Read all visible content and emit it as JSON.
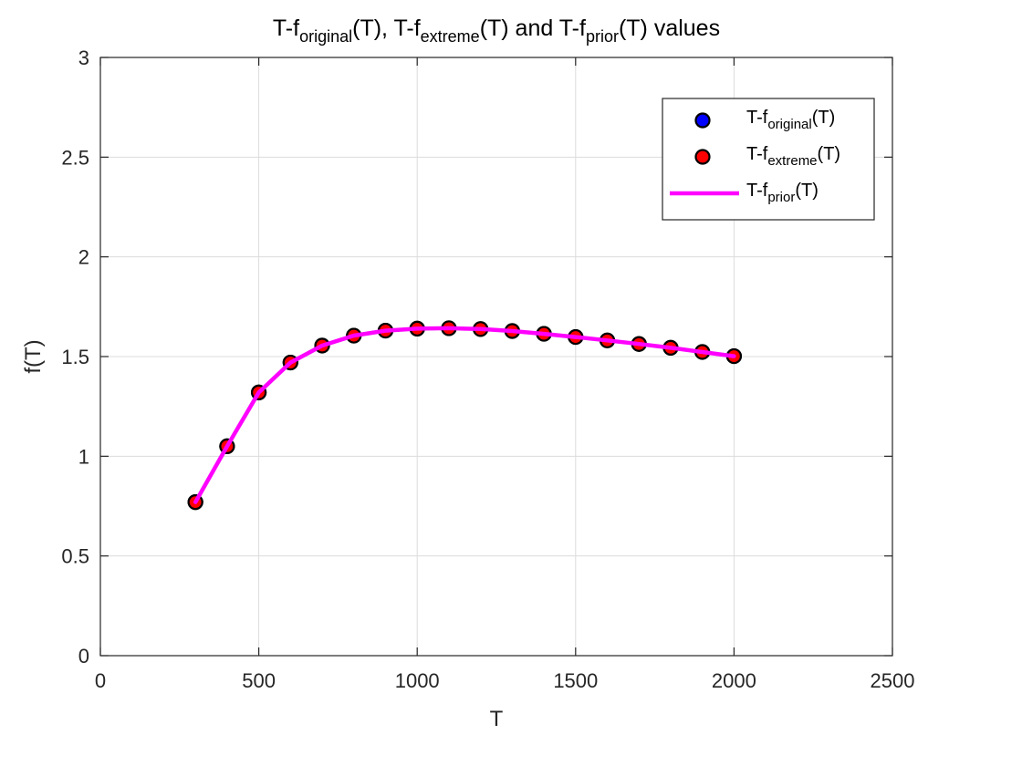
{
  "chart_data": {
    "type": "scatter",
    "title": {
      "parts": [
        {
          "text": "T-f",
          "sub": false
        },
        {
          "text": "original",
          "sub": true
        },
        {
          "text": "(T), T-f",
          "sub": false
        },
        {
          "text": "extreme",
          "sub": true
        },
        {
          "text": "(T) and T-f",
          "sub": false
        },
        {
          "text": "prior",
          "sub": true
        },
        {
          "text": "(T) values",
          "sub": false
        }
      ]
    },
    "xlabel": "T",
    "ylabel": "f(T)",
    "xlim": [
      0,
      2500
    ],
    "ylim": [
      0,
      3
    ],
    "xticks": [
      0,
      500,
      1000,
      1500,
      2000,
      2500
    ],
    "yticks": [
      0,
      0.5,
      1,
      1.5,
      2,
      2.5,
      3
    ],
    "xtick_labels": [
      "0",
      "500",
      "1000",
      "1500",
      "2000",
      "2500"
    ],
    "ytick_labels": [
      "0",
      "0.5",
      "1",
      "1.5",
      "2",
      "2.5",
      "3"
    ],
    "grid": true,
    "legend_position": "top-right",
    "x": [
      300,
      400,
      500,
      600,
      700,
      800,
      900,
      1000,
      1100,
      1200,
      1300,
      1400,
      1500,
      1600,
      1700,
      1800,
      1900,
      2000
    ],
    "series": [
      {
        "name_parts": [
          "T-f",
          "original",
          "(T)"
        ],
        "kind": "scatter",
        "color": "#0000ff",
        "values": [
          0.77,
          1.05,
          1.32,
          1.47,
          1.555,
          1.605,
          1.63,
          1.64,
          1.642,
          1.638,
          1.628,
          1.614,
          1.598,
          1.581,
          1.563,
          1.544,
          1.523,
          1.502
        ]
      },
      {
        "name_parts": [
          "T-f",
          "extreme",
          "(T)"
        ],
        "kind": "scatter",
        "color": "#ff0000",
        "values": [
          0.77,
          1.05,
          1.32,
          1.47,
          1.555,
          1.605,
          1.63,
          1.64,
          1.642,
          1.638,
          1.628,
          1.614,
          1.598,
          1.581,
          1.563,
          1.544,
          1.523,
          1.502
        ]
      },
      {
        "name_parts": [
          "T-f",
          "prior",
          "(T)"
        ],
        "kind": "line",
        "color": "#ff00ff",
        "values": [
          0.77,
          1.05,
          1.32,
          1.47,
          1.555,
          1.605,
          1.63,
          1.64,
          1.642,
          1.638,
          1.628,
          1.614,
          1.598,
          1.581,
          1.563,
          1.544,
          1.523,
          1.502
        ]
      }
    ],
    "colors": {
      "marker_edge": "#000000",
      "grid": "#dcdcdc",
      "axis": "#262626"
    }
  }
}
